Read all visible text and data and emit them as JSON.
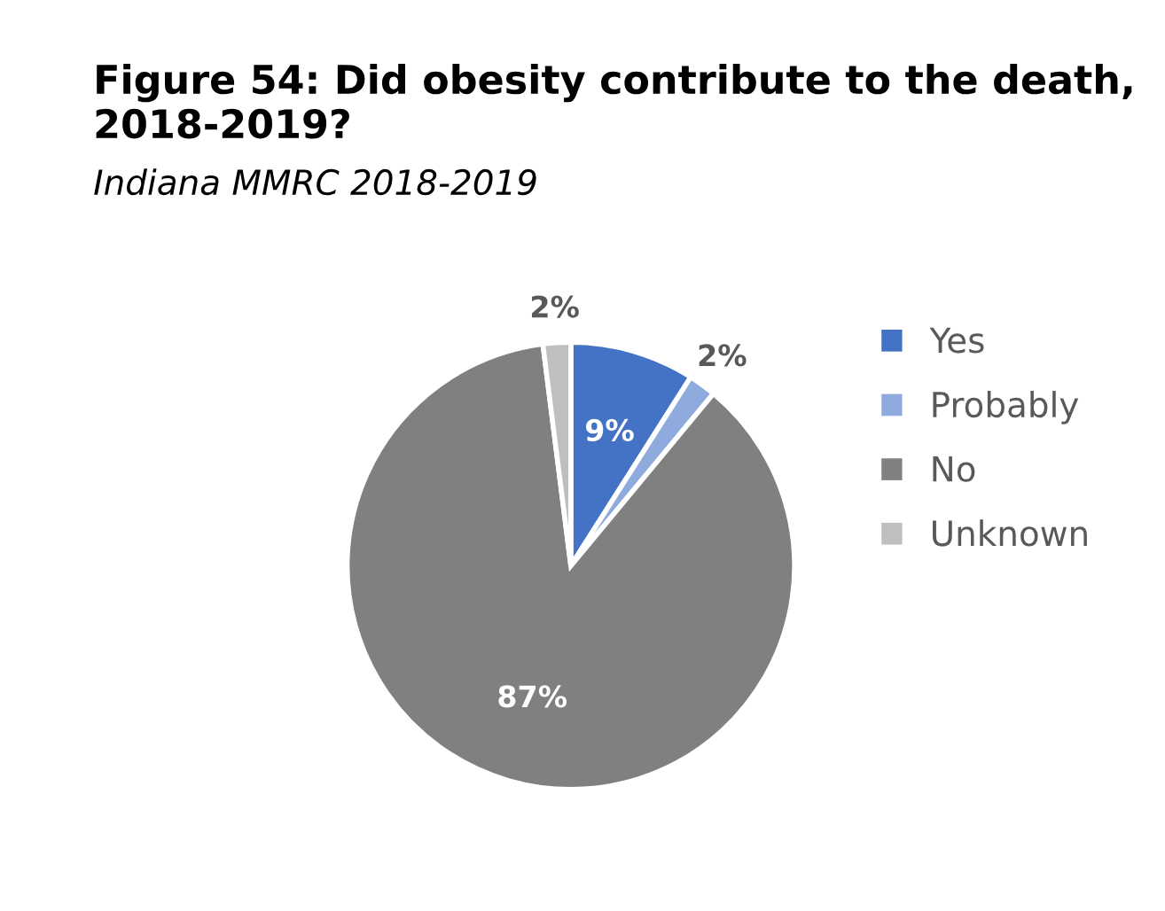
{
  "chart_data": {
    "type": "pie",
    "title": "Figure 54: Did obesity contribute to the death, 2018-2019?",
    "subtitle": "Indiana MMRC 2018-2019",
    "categories": [
      "Yes",
      "Probably",
      "No",
      "Unknown"
    ],
    "values": [
      9,
      2,
      87,
      2
    ],
    "colors": [
      "#4472c4",
      "#8faadc",
      "#808080",
      "#bfbfbf"
    ],
    "value_labels": [
      "9%",
      "2%",
      "87%",
      "2%"
    ],
    "legend": "right"
  }
}
